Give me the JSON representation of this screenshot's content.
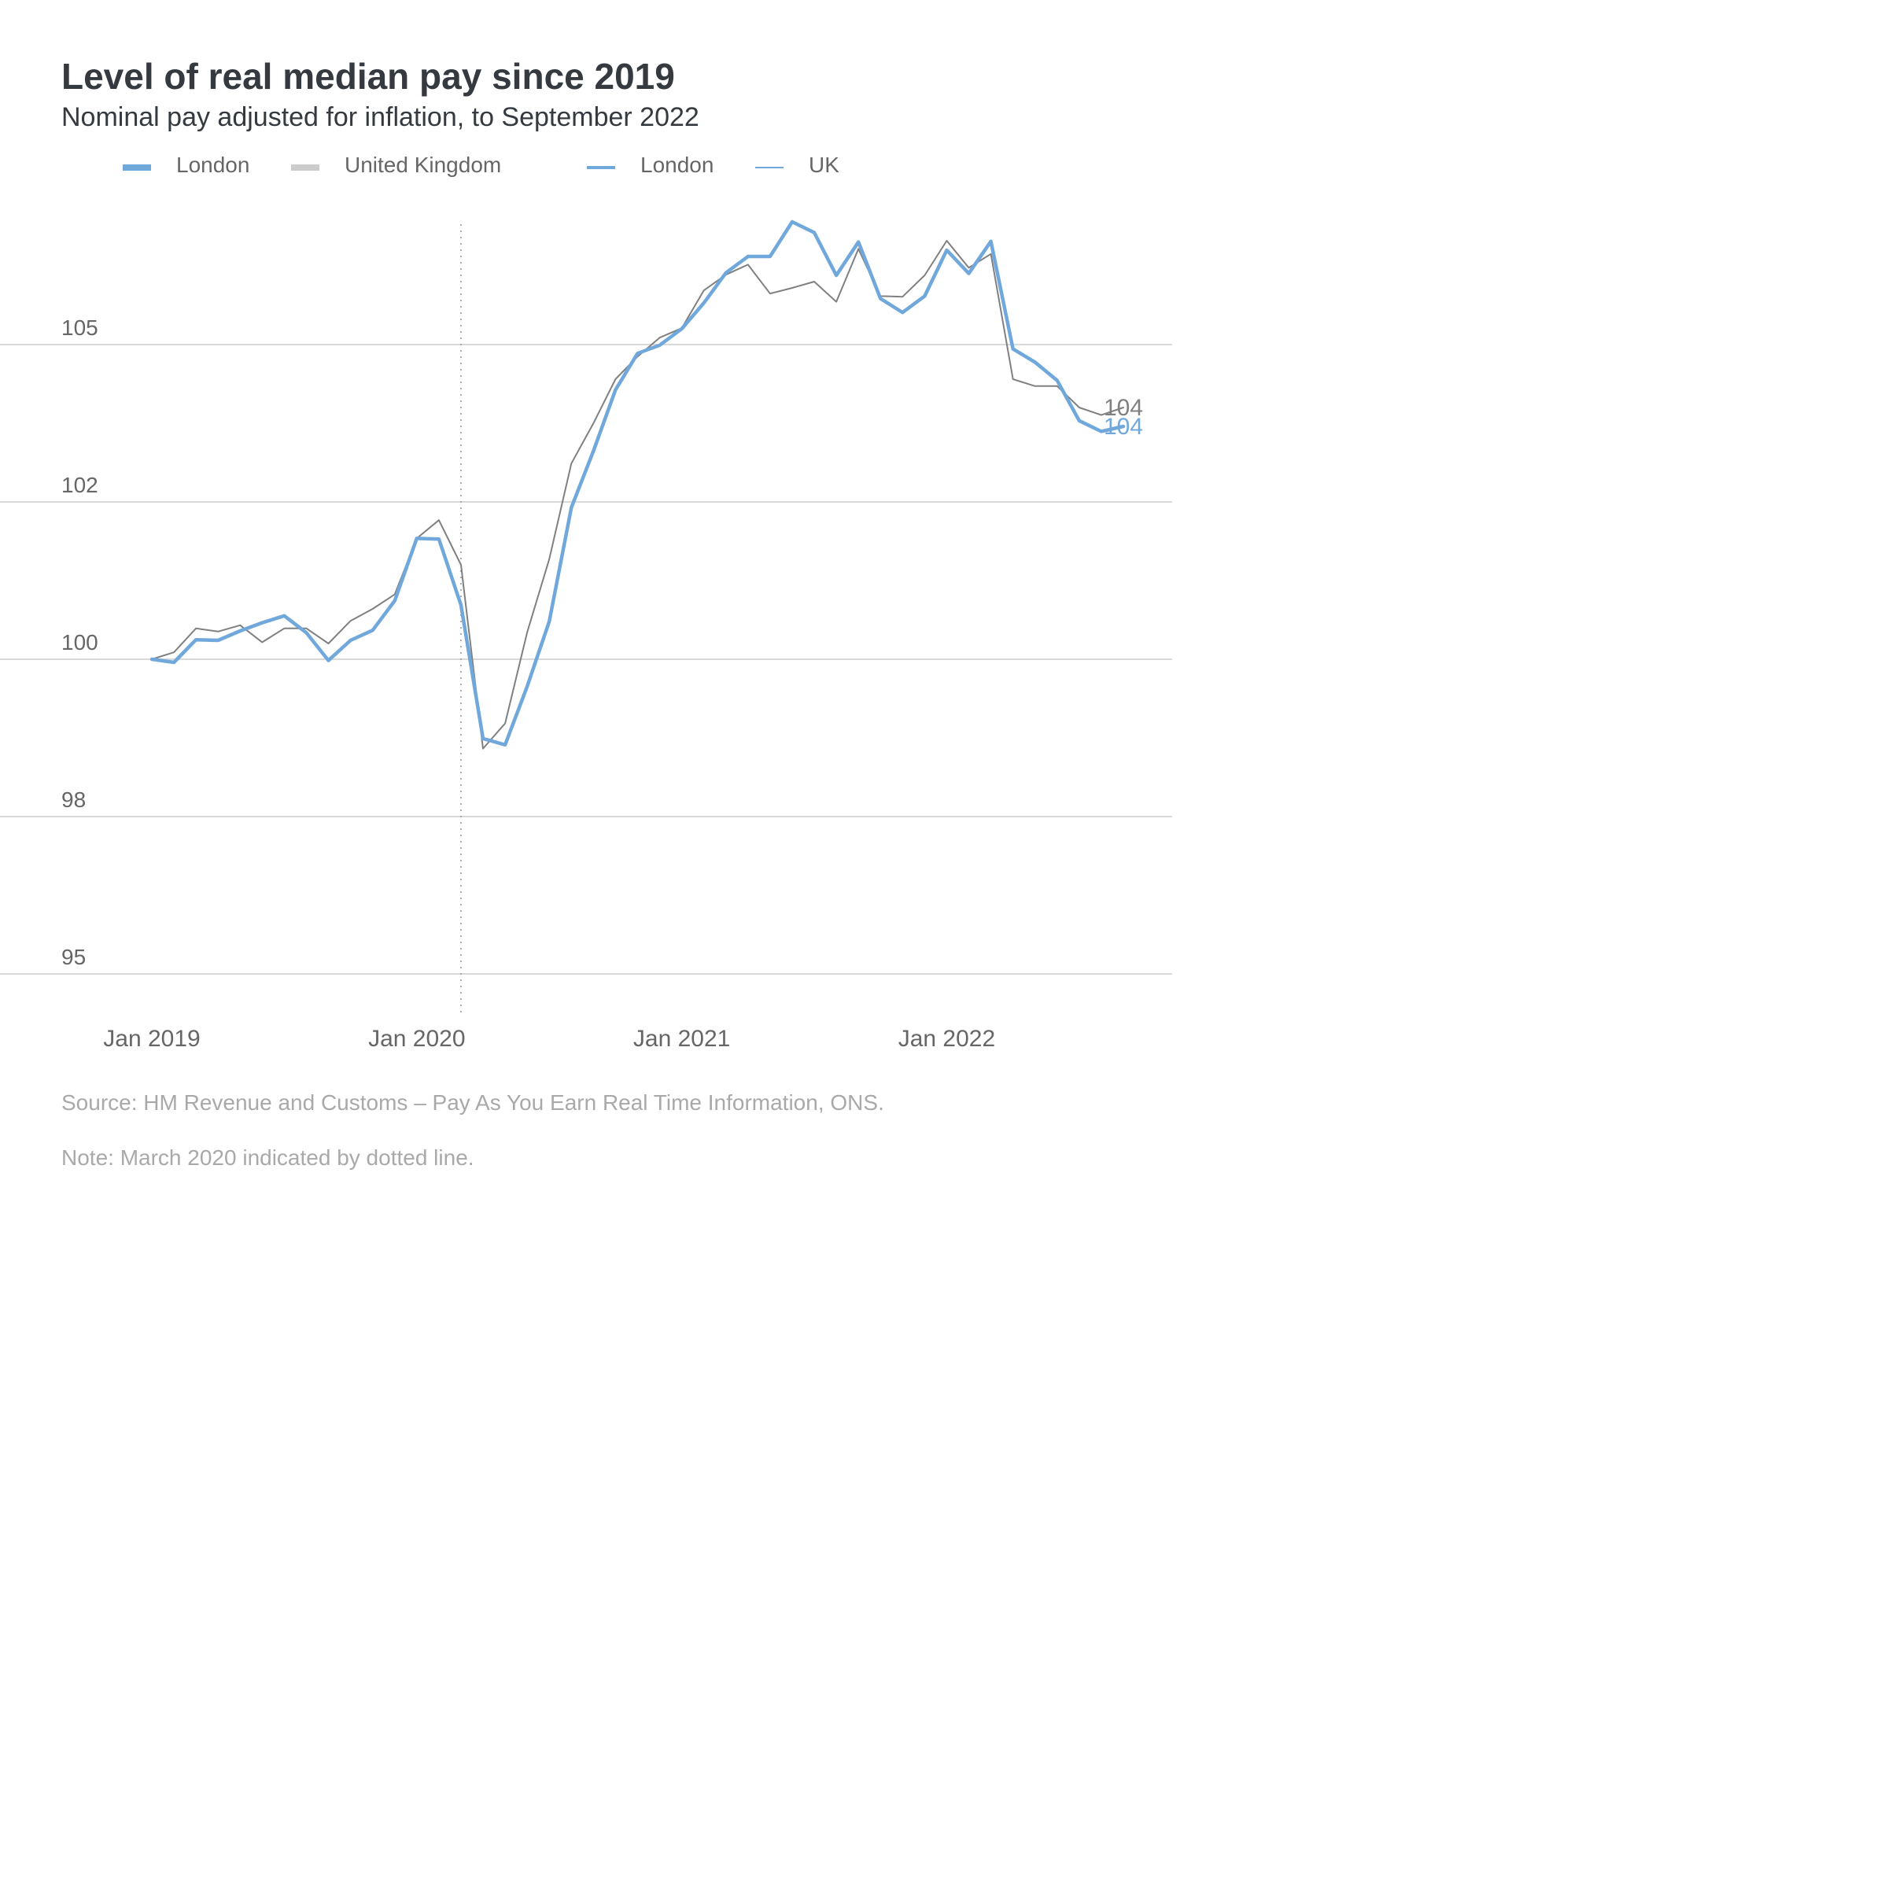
{
  "title": "Level of real median pay since 2019",
  "subtitle": "Nominal pay adjusted for inflation, to September 2022",
  "legend": [
    {
      "label": "London",
      "color": "#70a8dc",
      "style": "thick"
    },
    {
      "label": "United Kingdom",
      "color": "#cccccc",
      "style": "thick"
    },
    {
      "label": "London",
      "color": "#70a8dc",
      "style": "thick-line"
    },
    {
      "label": "UK",
      "color": "#70a8dc",
      "style": "thin-line"
    }
  ],
  "source": "Source: HM Revenue and Customs – Pay As You Earn Real Time Information, ONS.",
  "note": "Note: March 2020 indicated by dotted line.",
  "chart_data": {
    "type": "line",
    "x_start": "2019-01",
    "x_end": "2022-09",
    "x": [
      "2019-01",
      "2019-02",
      "2019-03",
      "2019-04",
      "2019-05",
      "2019-06",
      "2019-07",
      "2019-08",
      "2019-09",
      "2019-10",
      "2019-11",
      "2019-12",
      "2020-01",
      "2020-02",
      "2020-03",
      "2020-04",
      "2020-05",
      "2020-06",
      "2020-07",
      "2020-08",
      "2020-09",
      "2020-10",
      "2020-11",
      "2020-12",
      "2021-01",
      "2021-02",
      "2021-03",
      "2021-04",
      "2021-05",
      "2021-06",
      "2021-07",
      "2021-08",
      "2021-09",
      "2021-10",
      "2021-11",
      "2021-12",
      "2022-01",
      "2022-02",
      "2022-03",
      "2022-04",
      "2022-05",
      "2022-06",
      "2022-07",
      "2022-08",
      "2022-09"
    ],
    "y_ticks": [
      95,
      98,
      100,
      102,
      105
    ],
    "y_tick_positions": [
      95,
      97.5,
      100,
      102.5,
      105
    ],
    "y_range": [
      94.8,
      107.5
    ],
    "x_ticks": [
      {
        "label": "Jan 2019",
        "x": "2019-01"
      },
      {
        "label": "Jan 2020",
        "x": "2020-01"
      },
      {
        "label": "Jan 2021",
        "x": "2021-01"
      },
      {
        "label": "Jan 2022",
        "x": "2022-01"
      }
    ],
    "grid": "horizontal",
    "marker_line": {
      "x": "2020-03",
      "style": "dotted"
    },
    "series": [
      {
        "name": "UK",
        "color": "#808080",
        "width": "thin",
        "values": [
          100.0,
          100.11,
          100.49,
          100.44,
          100.54,
          100.27,
          100.49,
          100.49,
          100.25,
          100.61,
          100.8,
          101.03,
          101.92,
          102.21,
          101.5,
          98.58,
          98.98,
          100.43,
          101.59,
          103.11,
          103.75,
          104.45,
          104.81,
          105.11,
          105.26,
          105.86,
          106.11,
          106.27,
          105.81,
          105.9,
          106.0,
          105.68,
          106.52,
          105.77,
          105.76,
          106.1,
          106.65,
          106.22,
          106.44,
          104.45,
          104.34,
          104.34,
          104.0,
          103.88,
          104.0
        ],
        "end_label": "104"
      },
      {
        "name": "London",
        "color": "#70a8dc",
        "width": "thick",
        "values": [
          100.0,
          99.95,
          100.31,
          100.3,
          100.45,
          100.58,
          100.69,
          100.42,
          99.98,
          100.3,
          100.46,
          100.93,
          101.92,
          101.91,
          100.86,
          98.74,
          98.64,
          99.57,
          100.6,
          102.41,
          103.31,
          104.28,
          104.86,
          104.99,
          105.25,
          105.66,
          106.14,
          106.4,
          106.4,
          106.95,
          106.78,
          106.1,
          106.63,
          105.73,
          105.51,
          105.77,
          106.5,
          106.13,
          106.64,
          104.93,
          104.72,
          104.43,
          103.79,
          103.62,
          103.7
        ],
        "end_label": "104"
      }
    ]
  }
}
